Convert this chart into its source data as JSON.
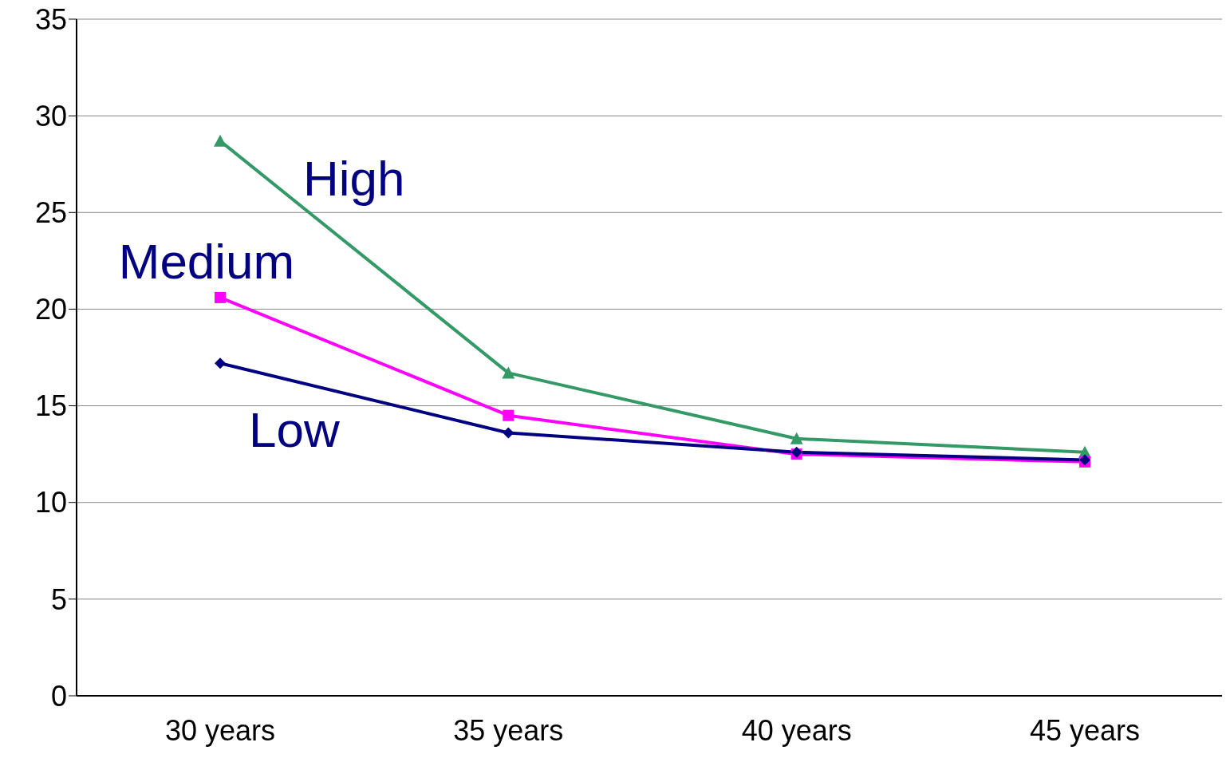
{
  "chart_data": {
    "type": "line",
    "categories": [
      "30 years",
      "35 years",
      "40 years",
      "45 years"
    ],
    "series": [
      {
        "name": "Low",
        "color": "#000080",
        "marker": "diamond",
        "values": [
          17.2,
          13.6,
          12.6,
          12.2
        ]
      },
      {
        "name": "Medium",
        "color": "#ff00ff",
        "marker": "square",
        "values": [
          20.6,
          14.5,
          12.5,
          12.1
        ]
      },
      {
        "name": "High",
        "color": "#339966",
        "marker": "triangle",
        "values": [
          28.7,
          16.7,
          13.3,
          12.6
        ]
      }
    ],
    "ylim": [
      0,
      35
    ],
    "yticks": [
      0,
      5,
      10,
      15,
      20,
      25,
      30,
      35
    ],
    "grid": "y",
    "legend": false
  }
}
